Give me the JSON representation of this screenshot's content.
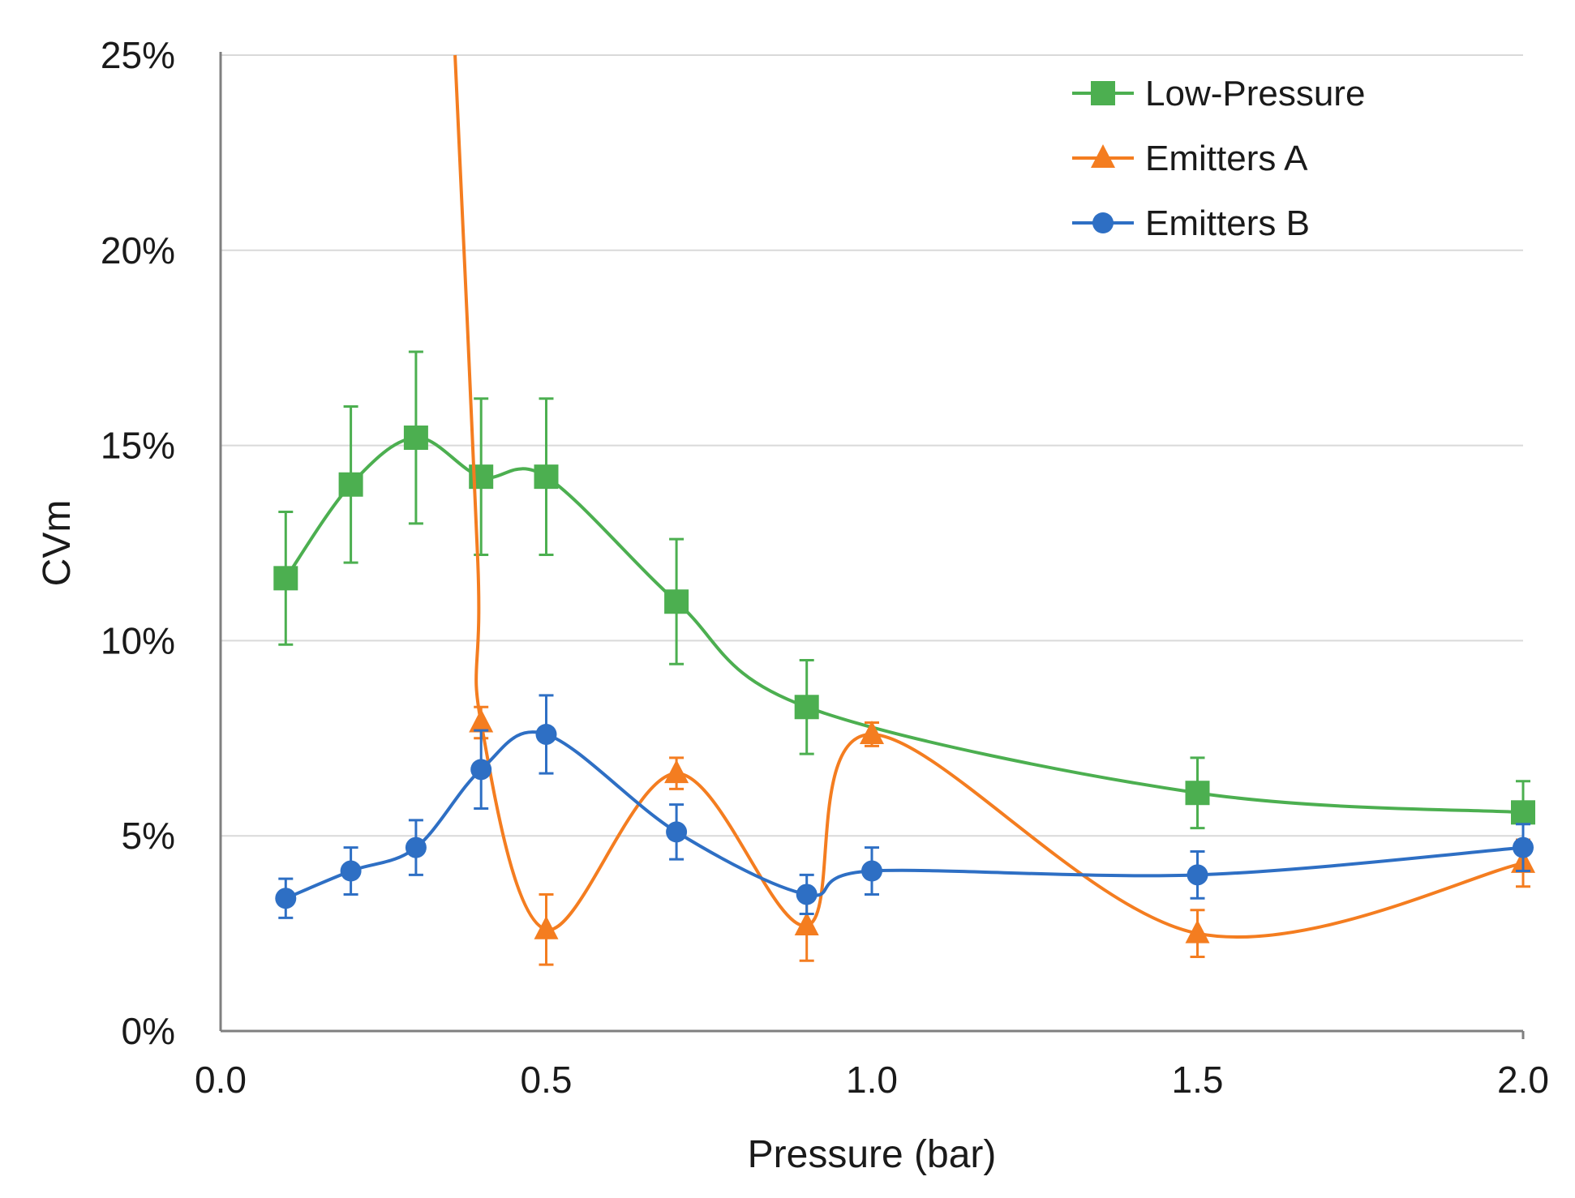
{
  "chart_data": {
    "type": "line",
    "title": "",
    "xlabel": "Pressure (bar)",
    "ylabel": "CVm",
    "xlim": [
      0.0,
      2.0
    ],
    "ylim": [
      0,
      25
    ],
    "x_ticks": [
      0.0,
      0.5,
      1.0,
      1.5,
      2.0
    ],
    "x_tick_labels": [
      "0.0",
      "0.5",
      "1.0",
      "1.5",
      "2.0"
    ],
    "y_ticks": [
      0,
      5,
      10,
      15,
      20,
      25
    ],
    "y_tick_labels": [
      "0%",
      "5%",
      "10%",
      "15%",
      "20%",
      "25%"
    ],
    "grid": "horizontal",
    "legend_position": "top-right",
    "series": [
      {
        "name": "Low-Pressure",
        "color": "#4CAF50",
        "marker": "square",
        "x": [
          0.1,
          0.2,
          0.3,
          0.4,
          0.5,
          0.7,
          0.9,
          1.5,
          2.0
        ],
        "y": [
          11.6,
          14.0,
          15.2,
          14.2,
          14.2,
          11.0,
          8.3,
          6.1,
          5.6
        ],
        "error": [
          1.7,
          2.0,
          2.2,
          2.0,
          2.0,
          1.6,
          1.2,
          0.9,
          0.8
        ]
      },
      {
        "name": "Emitters A",
        "color": "#F47D20",
        "marker": "triangle",
        "x": [
          0.4,
          0.5,
          0.7,
          0.9,
          1.0,
          1.5,
          2.0
        ],
        "y": [
          7.9,
          2.6,
          6.6,
          2.7,
          7.6,
          2.5,
          4.3
        ],
        "error": [
          0.4,
          0.9,
          0.4,
          0.9,
          0.3,
          0.6,
          0.6
        ],
        "lead_in": [
          [
            0.36,
            25
          ],
          [
            0.395,
            12
          ]
        ]
      },
      {
        "name": "Emitters B",
        "color": "#2E6FC4",
        "marker": "circle",
        "x": [
          0.1,
          0.2,
          0.3,
          0.4,
          0.5,
          0.7,
          0.9,
          1.0,
          1.5,
          2.0
        ],
        "y": [
          3.4,
          4.1,
          4.7,
          6.7,
          7.6,
          5.1,
          3.5,
          4.1,
          4.0,
          4.7
        ],
        "error": [
          0.5,
          0.6,
          0.7,
          1.0,
          1.0,
          0.7,
          0.5,
          0.6,
          0.6,
          0.6
        ]
      }
    ]
  }
}
